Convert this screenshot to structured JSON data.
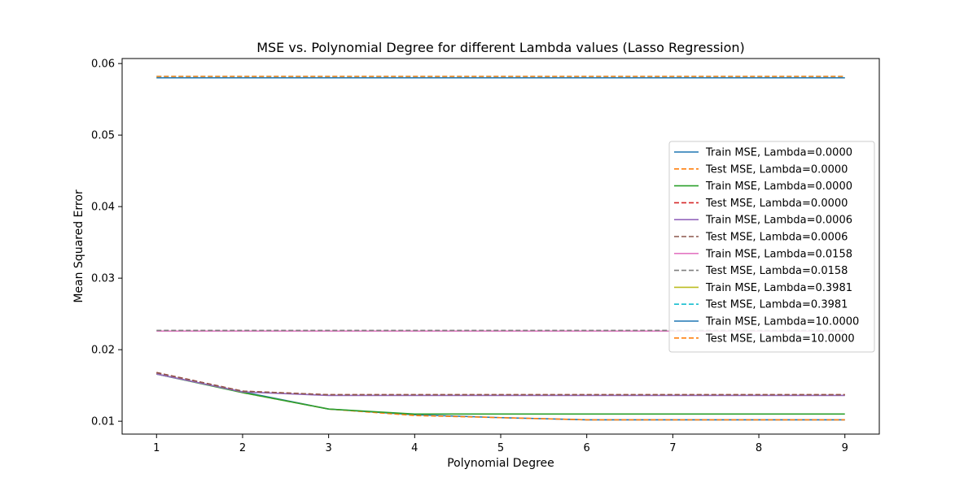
{
  "chart_data": {
    "type": "line",
    "title": "MSE vs. Polynomial Degree for different Lambda values (Lasso Regression)",
    "xlabel": "Polynomial Degree",
    "ylabel": "Mean Squared Error",
    "x": [
      1,
      2,
      3,
      4,
      5,
      6,
      7,
      8,
      9
    ],
    "xlim": [
      0.6,
      9.4
    ],
    "ylim": [
      0.0082,
      0.0607
    ],
    "xticks": [
      1,
      2,
      3,
      4,
      5,
      6,
      7,
      8,
      9
    ],
    "yticks": [
      0.01,
      0.02,
      0.03,
      0.04,
      0.05,
      0.06
    ],
    "ytick_labels": [
      "0.01",
      "0.02",
      "0.03",
      "0.04",
      "0.05",
      "0.06"
    ],
    "grid": false,
    "legend_position": "center-right",
    "series": [
      {
        "name": "Train MSE, Lambda=0.0000",
        "color": "#1f77b4",
        "dash": "solid",
        "values": [
          0.0166,
          0.0141,
          0.0117,
          0.0109,
          0.0105,
          0.0102,
          0.0102,
          0.0102,
          0.0102
        ]
      },
      {
        "name": "Test MSE, Lambda=0.0000",
        "color": "#ff7f0e",
        "dash": "dashed",
        "values": [
          0.0167,
          0.014,
          0.0117,
          0.0108,
          0.0105,
          0.0102,
          0.0102,
          0.0102,
          0.0102
        ]
      },
      {
        "name": "Train MSE, Lambda=0.0000",
        "color": "#2ca02c",
        "dash": "solid",
        "values": [
          0.0166,
          0.014,
          0.0117,
          0.011,
          0.011,
          0.011,
          0.011,
          0.011,
          0.011
        ]
      },
      {
        "name": "Test MSE, Lambda=0.0000",
        "color": "#d62728",
        "dash": "dashed",
        "values": [
          0.0168,
          0.0142,
          0.0137,
          0.0137,
          0.0137,
          0.0137,
          0.0137,
          0.0137,
          0.0137
        ]
      },
      {
        "name": "Train MSE, Lambda=0.0006",
        "color": "#9467bd",
        "dash": "solid",
        "values": [
          0.0166,
          0.0141,
          0.0136,
          0.0136,
          0.0136,
          0.0136,
          0.0136,
          0.0136,
          0.0136
        ]
      },
      {
        "name": "Test MSE, Lambda=0.0006",
        "color": "#8c564b",
        "dash": "dashed",
        "values": [
          0.0168,
          0.0142,
          0.0137,
          0.0137,
          0.0137,
          0.0137,
          0.0137,
          0.0137,
          0.0137
        ]
      },
      {
        "name": "Train MSE, Lambda=0.0158",
        "color": "#e377c2",
        "dash": "solid",
        "values": [
          0.0226,
          0.0226,
          0.0226,
          0.0226,
          0.0226,
          0.0226,
          0.0226,
          0.0226,
          0.0226
        ]
      },
      {
        "name": "Test MSE, Lambda=0.0158",
        "color": "#7f7f7f",
        "dash": "dashed",
        "values": [
          0.0227,
          0.0227,
          0.0227,
          0.0227,
          0.0227,
          0.0227,
          0.0227,
          0.0227,
          0.0227
        ]
      },
      {
        "name": "Train MSE, Lambda=0.3981",
        "color": "#bcbd22",
        "dash": "solid",
        "values": [
          0.058,
          0.058,
          0.058,
          0.058,
          0.058,
          0.058,
          0.058,
          0.058,
          0.058
        ]
      },
      {
        "name": "Test MSE, Lambda=0.3981",
        "color": "#17becf",
        "dash": "dashed",
        "values": [
          0.0582,
          0.0582,
          0.0582,
          0.0582,
          0.0582,
          0.0582,
          0.0582,
          0.0582,
          0.0582
        ]
      },
      {
        "name": "Train MSE, Lambda=10.0000",
        "color": "#1f77b4",
        "dash": "solid",
        "values": [
          0.058,
          0.058,
          0.058,
          0.058,
          0.058,
          0.058,
          0.058,
          0.058,
          0.058
        ]
      },
      {
        "name": "Test MSE, Lambda=10.0000",
        "color": "#ff7f0e",
        "dash": "dashed",
        "values": [
          0.0582,
          0.0582,
          0.0582,
          0.0582,
          0.0582,
          0.0582,
          0.0582,
          0.0582,
          0.0582
        ]
      }
    ]
  }
}
